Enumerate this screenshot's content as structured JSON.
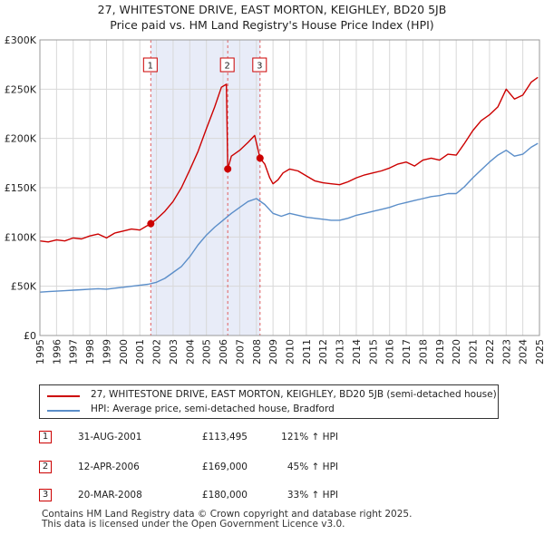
{
  "header": {
    "title_line1": "27, WHITESTONE DRIVE, EAST MORTON, KEIGHLEY, BD20 5JB",
    "title_line2": "Price paid vs. HM Land Registry's House Price Index (HPI)"
  },
  "colors": {
    "price_line": "#cc0000",
    "hpi_line": "#5b8ec9",
    "shade": "#e8ecf8",
    "grid": "#d8d8d8",
    "vline": "#e06060",
    "axis": "#222222"
  },
  "chart_data": {
    "type": "line",
    "title": "27, WHITESTONE DRIVE, EAST MORTON, KEIGHLEY, BD20 5JB",
    "subtitle": "Price paid vs. HM Land Registry's House Price Index (HPI)",
    "xlim": [
      1995,
      2025
    ],
    "ylim": [
      0,
      300000
    ],
    "x_ticks": [
      1995,
      1996,
      1997,
      1998,
      1999,
      2000,
      2001,
      2002,
      2003,
      2004,
      2005,
      2006,
      2007,
      2008,
      2009,
      2010,
      2011,
      2012,
      2013,
      2014,
      2015,
      2016,
      2017,
      2018,
      2019,
      2020,
      2021,
      2022,
      2023,
      2024,
      2025
    ],
    "y_ticks": [
      0,
      50000,
      100000,
      150000,
      200000,
      250000,
      300000
    ],
    "y_tick_labels": [
      "£0",
      "£50K",
      "£100K",
      "£150K",
      "£200K",
      "£250K",
      "£300K"
    ],
    "grid": true,
    "shaded_range": [
      2001.66,
      2008.22
    ],
    "series": [
      {
        "name": "27, WHITESTONE DRIVE, EAST MORTON, KEIGHLEY, BD20 5JB (semi-detached house)",
        "x": [
          1995.0,
          1995.5,
          1996.0,
          1996.5,
          1997.0,
          1997.5,
          1998.0,
          1998.5,
          1999.0,
          1999.5,
          2000.0,
          2000.5,
          2001.0,
          2001.4,
          2001.66,
          2002.0,
          2002.5,
          2003.0,
          2003.5,
          2004.0,
          2004.5,
          2005.0,
          2005.5,
          2005.9,
          2006.2,
          2006.28,
          2006.5,
          2007.0,
          2007.5,
          2007.9,
          2008.22,
          2008.5,
          2008.8,
          2009.0,
          2009.3,
          2009.6,
          2010.0,
          2010.5,
          2011.0,
          2011.5,
          2012.0,
          2012.5,
          2013.0,
          2013.5,
          2014.0,
          2014.5,
          2015.0,
          2015.5,
          2016.0,
          2016.5,
          2017.0,
          2017.5,
          2018.0,
          2018.5,
          2019.0,
          2019.5,
          2020.0,
          2020.5,
          2021.0,
          2021.5,
          2022.0,
          2022.5,
          2023.0,
          2023.5,
          2024.0,
          2024.5,
          2024.9
        ],
        "values": [
          96000,
          95000,
          97000,
          96000,
          99000,
          98000,
          101000,
          103000,
          99000,
          104000,
          106000,
          108000,
          107000,
          111000,
          113495,
          118000,
          126000,
          136000,
          150000,
          168000,
          187000,
          210000,
          232000,
          252000,
          255000,
          169000,
          182000,
          188000,
          196000,
          203000,
          180000,
          174000,
          160000,
          154000,
          158000,
          165000,
          169000,
          167000,
          162000,
          157000,
          155000,
          154000,
          153000,
          156000,
          160000,
          163000,
          165000,
          167000,
          170000,
          174000,
          176000,
          172000,
          178000,
          180000,
          178000,
          184000,
          183000,
          195000,
          208000,
          218000,
          224000,
          232000,
          250000,
          240000,
          244000,
          257000,
          262000
        ]
      },
      {
        "name": "HPI: Average price, semi-detached house, Bradford",
        "x": [
          1995.0,
          1995.5,
          1996.0,
          1996.5,
          1997.0,
          1997.5,
          1998.0,
          1998.5,
          1999.0,
          1999.5,
          2000.0,
          2000.5,
          2001.0,
          2001.5,
          2002.0,
          2002.5,
          2003.0,
          2003.5,
          2004.0,
          2004.5,
          2005.0,
          2005.5,
          2006.0,
          2006.5,
          2007.0,
          2007.5,
          2008.0,
          2008.5,
          2009.0,
          2009.5,
          2010.0,
          2010.5,
          2011.0,
          2011.5,
          2012.0,
          2012.5,
          2013.0,
          2013.5,
          2014.0,
          2014.5,
          2015.0,
          2015.5,
          2016.0,
          2016.5,
          2017.0,
          2017.5,
          2018.0,
          2018.5,
          2019.0,
          2019.5,
          2020.0,
          2020.5,
          2021.0,
          2021.5,
          2022.0,
          2022.5,
          2023.0,
          2023.5,
          2024.0,
          2024.5,
          2024.9
        ],
        "values": [
          44000,
          44500,
          45000,
          45500,
          46000,
          46500,
          47000,
          47500,
          47000,
          48000,
          49000,
          50000,
          51000,
          52000,
          54000,
          58000,
          64000,
          70000,
          80000,
          92000,
          102000,
          110000,
          117000,
          124000,
          130000,
          136000,
          139000,
          133000,
          124000,
          121000,
          124000,
          122000,
          120000,
          119000,
          118000,
          117000,
          117000,
          119000,
          122000,
          124000,
          126000,
          128000,
          130000,
          133000,
          135000,
          137000,
          139000,
          141000,
          142000,
          144000,
          144000,
          151000,
          160000,
          168000,
          176000,
          183000,
          188000,
          182000,
          184000,
          191000,
          195000
        ]
      }
    ],
    "sales": [
      {
        "n": "1",
        "x": 2001.66,
        "value": 113495,
        "date": "31-AUG-2001",
        "price": "£113,495",
        "hpi": "121% ↑ HPI"
      },
      {
        "n": "2",
        "x": 2006.28,
        "value": 169000,
        "date": "12-APR-2006",
        "price": "£169,000",
        "hpi": "45% ↑ HPI"
      },
      {
        "n": "3",
        "x": 2008.22,
        "value": 180000,
        "date": "20-MAR-2008",
        "price": "£180,000",
        "hpi": "33% ↑ HPI"
      }
    ]
  },
  "legend": {
    "items": [
      {
        "label": "27, WHITESTONE DRIVE, EAST MORTON, KEIGHLEY, BD20 5JB (semi-detached house)"
      },
      {
        "label": "HPI: Average price, semi-detached house, Bradford"
      }
    ]
  },
  "footer": {
    "line1": "Contains HM Land Registry data © Crown copyright and database right 2025.",
    "line2": "This data is licensed under the Open Government Licence v3.0."
  }
}
